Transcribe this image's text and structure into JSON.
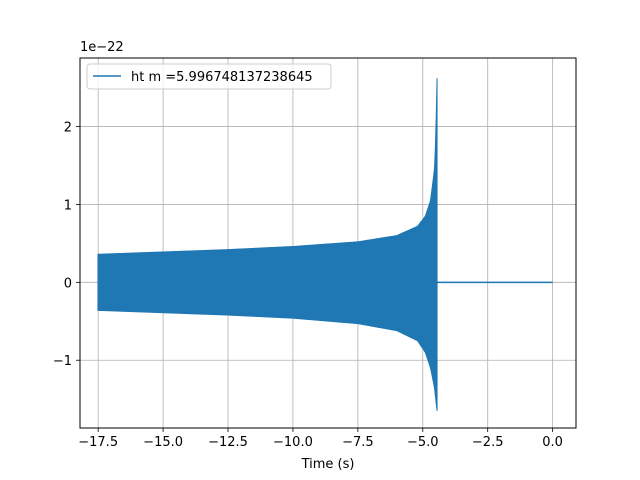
{
  "chart_data": {
    "type": "line",
    "title": "",
    "xlabel": "Time (s)",
    "ylabel": "",
    "y_offset_text": "1e−22",
    "xlim": [
      -18.2,
      0.9
    ],
    "ylim": [
      -1.87,
      2.88
    ],
    "grid": true,
    "legend_position": "upper left",
    "x_ticks": [
      -17.5,
      -15.0,
      -12.5,
      -10.0,
      -7.5,
      -5.0,
      -2.5,
      0.0
    ],
    "x_tick_labels": [
      "−17.5",
      "−15.0",
      "−12.5",
      "−10.0",
      "−7.5",
      "−5.0",
      "−2.5",
      "0.0"
    ],
    "y_ticks": [
      -1,
      0,
      1,
      2
    ],
    "y_tick_labels": [
      "−1",
      "0",
      "1",
      "2"
    ],
    "series": [
      {
        "name": "ht m =5.996748137238645",
        "color": "#1f77b4",
        "envelope": {
          "start": -17.5,
          "merger": -4.45,
          "end": 0.0,
          "x": [
            -17.5,
            -15.0,
            -12.5,
            -10.0,
            -7.5,
            -6.0,
            -5.2,
            -4.9,
            -4.7,
            -4.55,
            -4.5,
            -4.45
          ],
          "upper": [
            0.36,
            0.39,
            0.42,
            0.46,
            0.52,
            0.6,
            0.72,
            0.85,
            1.05,
            1.45,
            1.85,
            2.62
          ],
          "lower": [
            -0.36,
            -0.39,
            -0.42,
            -0.46,
            -0.53,
            -0.62,
            -0.75,
            -0.9,
            -1.1,
            -1.35,
            -1.5,
            -1.65
          ],
          "post_merger_value": 0.0
        }
      }
    ]
  }
}
